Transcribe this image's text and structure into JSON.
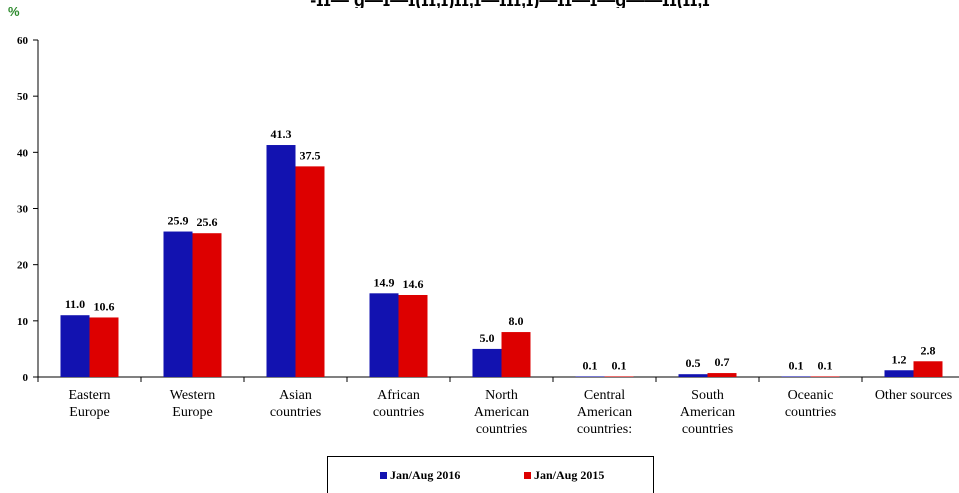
{
  "page": {
    "unit_label": "%",
    "title_fragment": "-ɪɪ— ɠ—ɪ—ɪ(ɪɪ,ɪ)ɪɪ,ɪ—ɪɪɪ,ɪ)—ɪɪ—ɪ—ɠ——ɪɪ(ɪɪ,ɪ"
  },
  "chart_data": {
    "type": "bar",
    "title": "",
    "xlabel": "",
    "ylabel": "%",
    "ylim": [
      0,
      60
    ],
    "yticks": [
      0,
      10,
      20,
      30,
      40,
      50,
      60
    ],
    "categories": [
      [
        "Eastern",
        "Europe"
      ],
      [
        "Western",
        "Europe"
      ],
      [
        "Asian",
        "countries"
      ],
      [
        "African",
        "countries"
      ],
      [
        "North",
        "American",
        "countries"
      ],
      [
        "Central",
        "American",
        "countries:"
      ],
      [
        "South",
        "American",
        "countries"
      ],
      [
        "Oceanic",
        "countries"
      ],
      [
        "Other sources"
      ]
    ],
    "series": [
      {
        "name": "Jan/Aug 2016",
        "color": "#1212b0",
        "values": [
          11.0,
          25.9,
          41.3,
          14.9,
          5.0,
          0.1,
          0.5,
          0.1,
          1.2
        ],
        "labels": [
          "11.0",
          "25.9",
          "41.3",
          "14.9",
          "5.0",
          "0.1",
          "0.5",
          "0.1",
          "1.2"
        ]
      },
      {
        "name": "Jan/Aug 2015",
        "color": "#dd0000",
        "values": [
          10.6,
          25.6,
          37.5,
          14.6,
          8.0,
          0.1,
          0.7,
          0.1,
          2.8
        ],
        "labels": [
          "10.6",
          "25.6",
          "37.5",
          "14.6",
          "8.0",
          "0.1",
          "0.7",
          "0.1",
          "2.8"
        ]
      }
    ],
    "legend_position": "bottom-center",
    "grid": false
  }
}
